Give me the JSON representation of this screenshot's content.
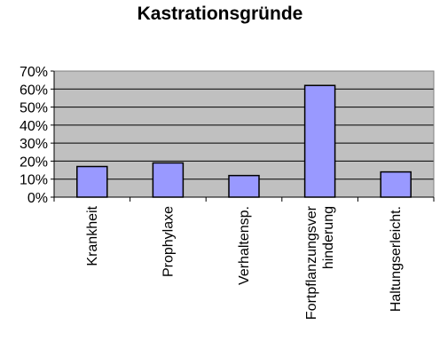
{
  "chart_data": {
    "type": "bar",
    "title": "Kastrationsgründe",
    "categories": [
      [
        "Krankheit"
      ],
      [
        "Prophylaxe"
      ],
      [
        "Verhaltensp."
      ],
      [
        "Fortpflanzungsver",
        "hinderung"
      ],
      [
        "Haltungserleicht."
      ]
    ],
    "values": [
      17,
      19,
      12,
      62,
      14
    ],
    "value_unit": "%",
    "ylim": [
      0,
      70
    ],
    "yticks": [
      "0%",
      "10%",
      "20%",
      "30%",
      "40%",
      "50%",
      "60%",
      "70%"
    ],
    "grid": true,
    "legend": "none",
    "colors": {
      "plot_background": "#c0c0c0",
      "bar_fill": "#9999ff",
      "bar_stroke": "#000000",
      "gridline": "#000000"
    }
  }
}
